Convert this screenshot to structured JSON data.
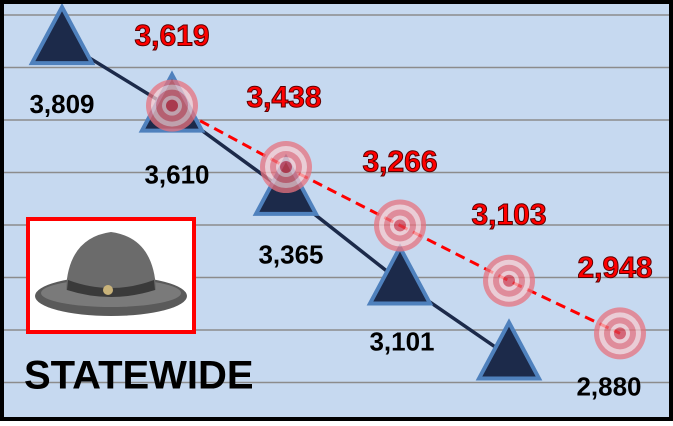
{
  "chart_data": {
    "type": "line",
    "title": "STATEWIDE",
    "categories": [
      null,
      null,
      null,
      null,
      null,
      null
    ],
    "series": [
      {
        "name": null,
        "color": "#1c2a4a",
        "marker": "triangle",
        "dash": false,
        "values": [
          3809,
          3610,
          3365,
          3101,
          2880,
          null
        ],
        "value_labels": [
          "3,809",
          "3,610",
          "3,365",
          "3,101",
          "2,880",
          null
        ]
      },
      {
        "name": null,
        "color": "#ff0000",
        "marker": "target",
        "dash": true,
        "values": [
          null,
          3619,
          3438,
          3266,
          3103,
          2948
        ],
        "value_labels": [
          null,
          "3,619",
          "3,438",
          "3,266",
          "3,103",
          "2,948"
        ]
      }
    ],
    "ylim": [
      2690,
      3930
    ],
    "grid": true
  }
}
